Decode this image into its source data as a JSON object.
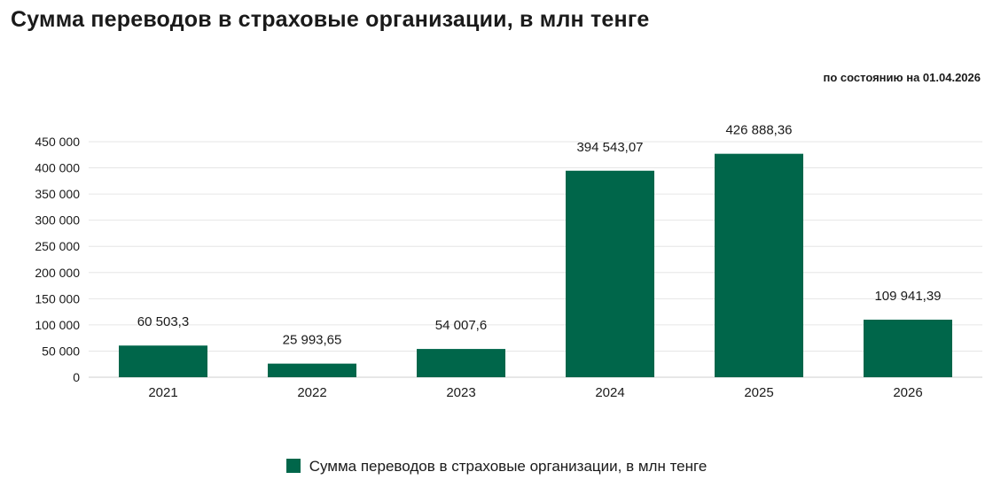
{
  "header": {
    "title": "Сумма переводов в страховые организации, в млн тенге",
    "as_of": "по состоянию на 01.04.2026"
  },
  "colors": {
    "bar": "#00664a",
    "grid": "#e6e6e6",
    "text": "#1a1a1a"
  },
  "chart_data": {
    "type": "bar",
    "categories": [
      "2021",
      "2022",
      "2023",
      "2024",
      "2025",
      "2026"
    ],
    "series": [
      {
        "name": "Сумма переводов в страховые организации, в млн тенге",
        "values": [
          60503.3,
          25993.65,
          54007.6,
          394543.07,
          426888.36,
          109941.39
        ],
        "value_labels": [
          "60 503,3",
          "25 993,65",
          "54 007,6",
          "394 543,07",
          "426 888,36",
          "109 941,39"
        ]
      }
    ],
    "ylim": [
      0,
      450000
    ],
    "yticks": [
      0,
      50000,
      100000,
      150000,
      200000,
      250000,
      300000,
      350000,
      400000,
      450000
    ],
    "ytick_labels": [
      "0",
      "50 000",
      "100 000",
      "150 000",
      "200 000",
      "250 000",
      "300 000",
      "350 000",
      "400 000",
      "450 000"
    ],
    "grid": true,
    "legend": "bottom"
  }
}
